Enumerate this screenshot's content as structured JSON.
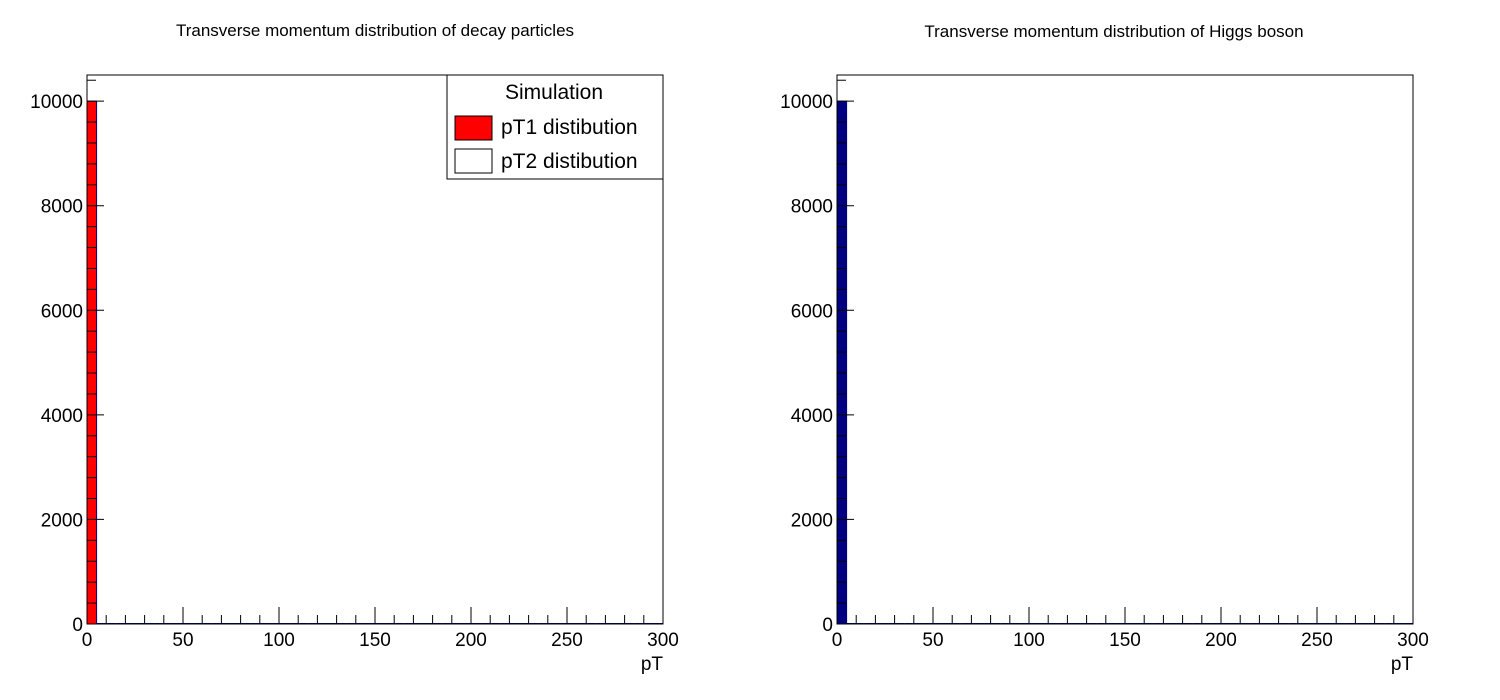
{
  "chart_data": [
    {
      "type": "bar",
      "title": "Transverse momentum distribution of decay particles",
      "xlabel": "pT",
      "ylabel": "",
      "xlim": [
        0,
        300
      ],
      "ylim": [
        0,
        10500
      ],
      "x_ticks": [
        "0",
        "50",
        "100",
        "150",
        "200",
        "250",
        "300"
      ],
      "y_ticks": [
        "0",
        "2000",
        "4000",
        "6000",
        "8000",
        "10000"
      ],
      "bin_width": 5,
      "series": [
        {
          "name": "pT1 distibution",
          "color": "#ff0000",
          "bins": [
            {
              "x0": 0,
              "x1": 5,
              "value": 10000
            }
          ]
        },
        {
          "name": "pT2 distibution",
          "color": "#ffffff",
          "bins": []
        }
      ],
      "legend": {
        "header": "Simulation",
        "position": "top-right"
      },
      "grid": false
    },
    {
      "type": "bar",
      "title": "Transverse momentum distribution of Higgs boson",
      "xlabel": "pT",
      "ylabel": "",
      "xlim": [
        0,
        300
      ],
      "ylim": [
        0,
        10500
      ],
      "x_ticks": [
        "0",
        "50",
        "100",
        "150",
        "200",
        "250",
        "300"
      ],
      "y_ticks": [
        "0",
        "2000",
        "4000",
        "6000",
        "8000",
        "10000"
      ],
      "bin_width": 5,
      "series": [
        {
          "name": "",
          "color": "#000080",
          "bins": [
            {
              "x0": 0,
              "x1": 5,
              "value": 10000
            }
          ]
        }
      ],
      "grid": false
    }
  ]
}
